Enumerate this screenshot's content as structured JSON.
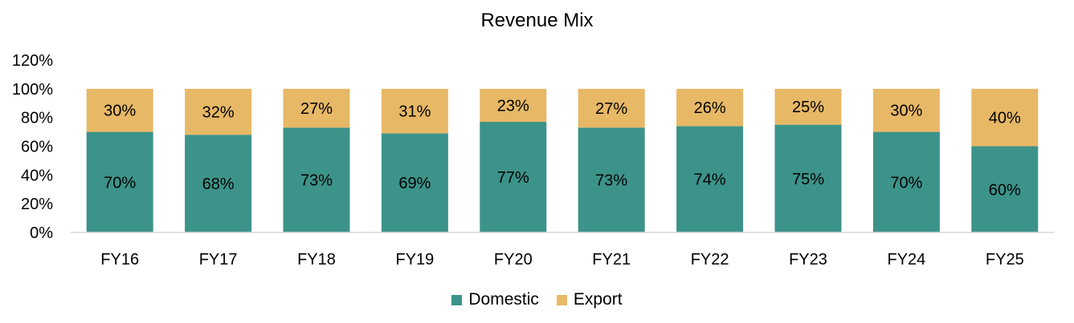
{
  "chart_data": {
    "type": "bar",
    "stacked": true,
    "title": "Revenue Mix",
    "xlabel": "",
    "ylabel": "",
    "ylim": [
      0,
      120
    ],
    "yticks": [
      0,
      20,
      40,
      60,
      80,
      100,
      120
    ],
    "ytick_labels": [
      "0%",
      "20%",
      "40%",
      "60%",
      "80%",
      "100%",
      "120%"
    ],
    "categories": [
      "FY16",
      "FY17",
      "FY18",
      "FY19",
      "FY20",
      "FY21",
      "FY22",
      "FY23",
      "FY24",
      "FY25"
    ],
    "series": [
      {
        "name": "Domestic",
        "color": "#3c9389",
        "values": [
          70,
          68,
          73,
          69,
          77,
          73,
          74,
          75,
          70,
          60
        ],
        "labels": [
          "70%",
          "68%",
          "73%",
          "69%",
          "77%",
          "73%",
          "74%",
          "75%",
          "70%",
          "60%"
        ]
      },
      {
        "name": "Export",
        "color": "#e7b866",
        "values": [
          30,
          32,
          27,
          31,
          23,
          27,
          26,
          25,
          30,
          40
        ],
        "labels": [
          "30%",
          "32%",
          "27%",
          "31%",
          "23%",
          "27%",
          "26%",
          "25%",
          "30%",
          "40%"
        ]
      }
    ],
    "grid": false,
    "legend_position": "bottom"
  }
}
